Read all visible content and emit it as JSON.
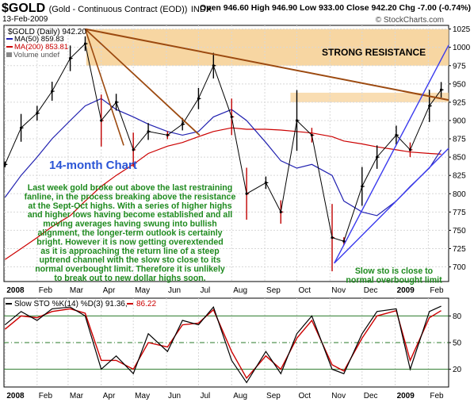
{
  "header": {
    "symbol": "$GOLD",
    "name": "(Gold - Continuous Contract (EOD))",
    "exchange": "INDX",
    "date": "13-Feb-2009",
    "ohlc": "Open 946.60  High 946.90  Low 933.00  Close 942.20  Chg -7.00 (-0.74%)",
    "watermark": "© StockCharts.com"
  },
  "legend": {
    "main": "$GOLD (Daily) 942.20",
    "ma50": "MA(50) 859.83",
    "ma200": "MA(200) 853.81",
    "volume": "Volume undef",
    "sto_label": "Slow STO %K(14) %D(3) 91.36,",
    "sto_value2": "86.22"
  },
  "annotations": {
    "resistance": "STRONG RESISTANCE",
    "chart_title": "14-month Chart",
    "commentary": [
      "Last week gold broke out above the last restraining",
      "fanline, in the process breaking above the resistance",
      "at the Sept-Oct highs. With a series of higher highs",
      "and higher lows having become established and all",
      "moving averages having swung into bullish",
      "alignment, the longer-term outlook is certainly",
      "bright. However it is now getting overextended",
      "as it is approaching the return line of a steep",
      "uptrend channel with the slow sto close to its",
      "normal overbought limit. Therefore it is unlikely",
      "to break out to new dollar highs soon."
    ],
    "sto_note": [
      "Slow sto is close to",
      "normal overbought limit"
    ]
  },
  "colors": {
    "price": "#000000",
    "bar_up": "#000000",
    "bar_down": "#c00000",
    "ma50": "#2020b0",
    "ma200": "#cc0000",
    "trendline": "#9c4a10",
    "resistance_zone": "#f6cf92",
    "channel": "#3a3aee",
    "annotation_text": "#1e8a1e",
    "title_text": "#2a55d6",
    "sto_k": "#000000",
    "sto_d": "#cc0000"
  },
  "chart_data": [
    {
      "type": "line",
      "title": "$GOLD (Daily) 942.20",
      "x": [
        "2008-01-02",
        "2008-01-17",
        "2008-02-01",
        "2008-02-15",
        "2008-03-03",
        "2008-03-17",
        "2008-04-01",
        "2008-04-15",
        "2008-05-01",
        "2008-05-15",
        "2008-06-02",
        "2008-06-16",
        "2008-07-01",
        "2008-07-15",
        "2008-08-01",
        "2008-08-15",
        "2008-09-02",
        "2008-09-16",
        "2008-10-01",
        "2008-10-15",
        "2008-11-03",
        "2008-11-14",
        "2008-12-01",
        "2008-12-15",
        "2009-01-02",
        "2009-01-15",
        "2009-02-02",
        "2009-02-13"
      ],
      "series": [
        {
          "name": "$GOLD",
          "values": [
            840,
            890,
            910,
            940,
            985,
            1005,
            900,
            925,
            860,
            885,
            880,
            895,
            930,
            975,
            905,
            800,
            815,
            775,
            900,
            880,
            740,
            735,
            810,
            850,
            880,
            860,
            920,
            942
          ]
        },
        {
          "name": "MA(50)",
          "values": [
            795,
            825,
            850,
            875,
            900,
            920,
            930,
            915,
            905,
            895,
            885,
            880,
            885,
            905,
            915,
            900,
            870,
            845,
            835,
            840,
            825,
            790,
            775,
            770,
            790,
            810,
            835,
            860
          ]
        },
        {
          "name": "MA(200)",
          "values": [
            710,
            725,
            740,
            755,
            770,
            790,
            810,
            825,
            840,
            855,
            865,
            870,
            878,
            885,
            890,
            888,
            888,
            887,
            885,
            883,
            878,
            872,
            868,
            864,
            860,
            857,
            855,
            854
          ]
        }
      ],
      "ylim": [
        680,
        1030
      ],
      "yticks": [
        700,
        725,
        750,
        775,
        800,
        825,
        850,
        875,
        900,
        925,
        950,
        975,
        1000,
        1025
      ],
      "xtick_labels": [
        "2008",
        "Feb",
        "Mar",
        "Apr",
        "May",
        "Jun",
        "Jul",
        "Aug",
        "Sep",
        "Oct",
        "Nov",
        "Dec",
        "2009",
        "Feb"
      ],
      "resistance_zone": [
        975,
        1025
      ],
      "minor_zone": [
        925,
        938
      ],
      "grid": true
    },
    {
      "type": "line",
      "title": "Slow STO %K(14) %D(3) 91.36, 86.22",
      "x": [
        "2008-01-02",
        "2008-01-17",
        "2008-02-01",
        "2008-02-15",
        "2008-03-03",
        "2008-03-17",
        "2008-04-01",
        "2008-04-15",
        "2008-05-01",
        "2008-05-15",
        "2008-06-02",
        "2008-06-16",
        "2008-07-01",
        "2008-07-15",
        "2008-08-01",
        "2008-08-15",
        "2008-09-02",
        "2008-09-16",
        "2008-10-01",
        "2008-10-15",
        "2008-11-03",
        "2008-11-14",
        "2008-12-01",
        "2008-12-15",
        "2009-01-02",
        "2009-01-15",
        "2009-02-02",
        "2009-02-13"
      ],
      "series": [
        {
          "name": "%K",
          "values": [
            70,
            85,
            75,
            88,
            90,
            80,
            20,
            35,
            15,
            60,
            40,
            75,
            70,
            90,
            30,
            5,
            40,
            15,
            60,
            80,
            20,
            15,
            60,
            85,
            88,
            20,
            85,
            91
          ]
        },
        {
          "name": "%D",
          "values": [
            65,
            80,
            78,
            85,
            88,
            83,
            30,
            30,
            20,
            50,
            45,
            70,
            72,
            87,
            40,
            10,
            35,
            20,
            55,
            75,
            25,
            18,
            55,
            80,
            86,
            30,
            78,
            86
          ]
        }
      ],
      "ylim": [
        0,
        100
      ],
      "yticks": [
        20,
        50,
        80
      ],
      "grid": true
    }
  ]
}
